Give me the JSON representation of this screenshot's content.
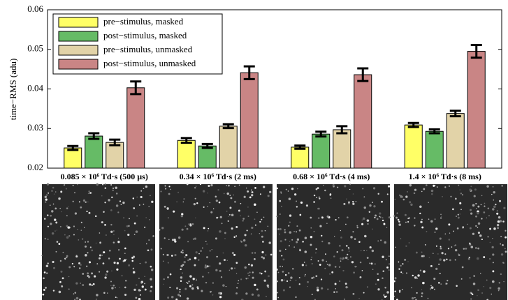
{
  "chart_data": {
    "type": "bar",
    "ylabel": "time−RMS (adu)",
    "categories": [
      "0.085 × 10⁶ Td·s (500 µs)",
      "0.34 × 10⁶ Td·s (2 ms)",
      "0.68 × 10⁶ Td·s (4 ms)",
      "1.4 × 10⁶ Td·s (8 ms)"
    ],
    "series": [
      {
        "name": "pre−stimulus, masked",
        "color": "#ffff66",
        "values": [
          0.0251,
          0.027,
          0.0253,
          0.0309
        ],
        "errors": [
          0.0005,
          0.0006,
          0.0004,
          0.0005
        ]
      },
      {
        "name": "post−stimulus, masked",
        "color": "#66bb66",
        "values": [
          0.0281,
          0.0256,
          0.0286,
          0.0293
        ],
        "errors": [
          0.0007,
          0.0005,
          0.0006,
          0.0005
        ]
      },
      {
        "name": "pre−stimulus, unmasked",
        "color": "#e2d3a8",
        "values": [
          0.0265,
          0.0306,
          0.0297,
          0.0338
        ],
        "errors": [
          0.0007,
          0.0005,
          0.0009,
          0.0007
        ]
      },
      {
        "name": "post−stimulus, unmasked",
        "color": "#c98585",
        "values": [
          0.0403,
          0.0441,
          0.0436,
          0.0495
        ],
        "errors": [
          0.0016,
          0.0016,
          0.0016,
          0.0016
        ]
      }
    ],
    "ylim": [
      0.02,
      0.06
    ],
    "yticks": [
      0.02,
      0.03,
      0.04,
      0.05,
      0.06
    ],
    "legend": "upper-left"
  }
}
